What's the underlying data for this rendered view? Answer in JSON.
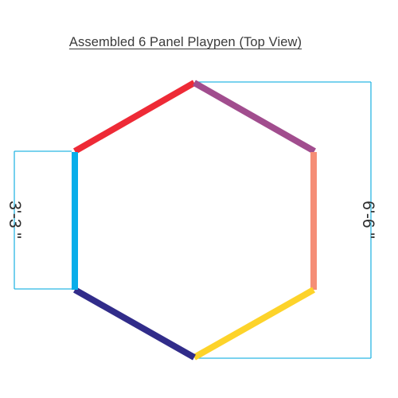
{
  "title": "Assembled 6 Panel Playpen (Top View)",
  "panels": [
    {
      "name": "top-left",
      "color": "#ee2a36"
    },
    {
      "name": "top-right",
      "color": "#a14d8e"
    },
    {
      "name": "right",
      "color": "#f58e76"
    },
    {
      "name": "bottom-right",
      "color": "#fdd32a"
    },
    {
      "name": "bottom-left",
      "color": "#312c8a"
    },
    {
      "name": "left",
      "color": "#08aeea"
    }
  ],
  "dimension_color": "#2bb6e3",
  "dimensions": {
    "panel_width": "3'-3 \"",
    "overall_width": "6'-6 \""
  }
}
